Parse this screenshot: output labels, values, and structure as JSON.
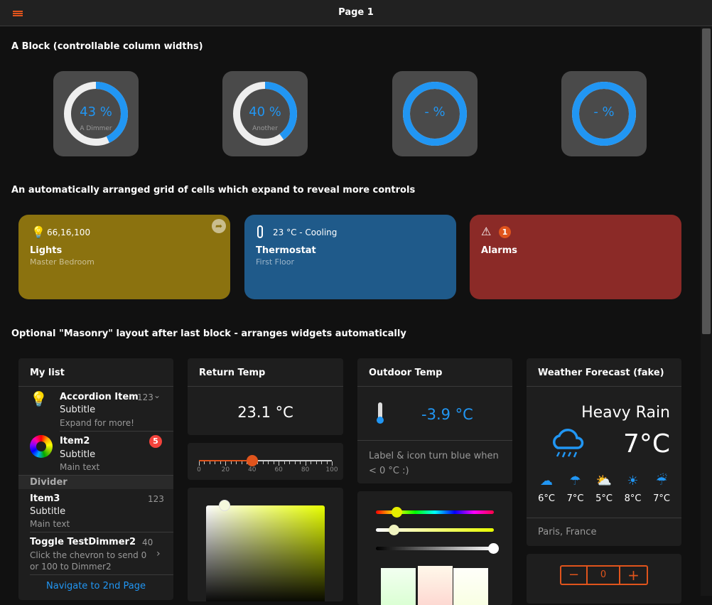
{
  "header": {
    "title": "Page 1",
    "menu_icon": "list-icon"
  },
  "blocks": {
    "block1": "A Block (controllable column widths)",
    "block2": "An automatically arranged grid of cells which expand to reveal more controls",
    "block3": "Optional \"Masonry\" layout after last block - arranges widgets automatically"
  },
  "gauges": [
    {
      "value": "43 %",
      "label": "A Dimmer",
      "percent": 43
    },
    {
      "value": "40 %",
      "label": "Another",
      "percent": 40
    },
    {
      "value": "- %",
      "label": "",
      "percent": 100
    },
    {
      "value": "- %",
      "label": "",
      "percent": 100
    }
  ],
  "tiles": [
    {
      "state": "66,16,100",
      "name": "Lights",
      "sub": "Master Bedroom",
      "color": "#8b720f",
      "icon": "lightbulb-icon"
    },
    {
      "state": "23 °C - Cooling",
      "name": "Thermostat",
      "sub": "First Floor",
      "color": "#1f5a8a",
      "icon": "thermometer-icon"
    },
    {
      "state": "",
      "badge": "1",
      "name": "Alarms",
      "sub": "",
      "color": "#8b2a27",
      "icon": "warning-icon"
    }
  ],
  "list": {
    "title": "My list",
    "items": [
      {
        "title": "Accordion Item",
        "badge": "123",
        "subtitle": "Subtitle",
        "text": "Expand for more!"
      },
      {
        "title": "Item2",
        "badge": "5",
        "subtitle": "Subtitle",
        "text": "Main text"
      },
      {
        "divider": "Divider"
      },
      {
        "title": "Item3",
        "badge": "123",
        "subtitle": "Subtitle",
        "text": "Main text"
      },
      {
        "title": "Toggle TestDimmer2",
        "badge": "40",
        "text": "Click the chevron to send 0 or 100 to Dimmer2"
      }
    ],
    "link": "Navigate to 2nd Page"
  },
  "return_temp": {
    "title": "Return Temp",
    "value": "23.1 °C"
  },
  "slider": {
    "value": 40,
    "ticks": [
      "0",
      "20",
      "40",
      "60",
      "80",
      "100"
    ]
  },
  "outdoor": {
    "title": "Outdoor Temp",
    "value": "-3.9 °C",
    "footer": "Label & icon turn blue when < 0 °C :)"
  },
  "weather": {
    "title": "Weather Forecast (fake)",
    "condition": "Heavy Rain",
    "temp": "7°C",
    "location": "Paris, France",
    "forecast": [
      {
        "t": "6°C",
        "icon": "cloud-icon"
      },
      {
        "t": "7°C",
        "icon": "light-rain-icon"
      },
      {
        "t": "5°C",
        "icon": "partly-sunny-icon"
      },
      {
        "t": "8°C",
        "icon": "sun-icon"
      },
      {
        "t": "7°C",
        "icon": "heavy-rain-icon"
      }
    ]
  },
  "stepper": {
    "value": "0",
    "minus": "−",
    "plus": "+"
  },
  "colors": {
    "accent": "#e0541c",
    "blue": "#2196f3"
  }
}
